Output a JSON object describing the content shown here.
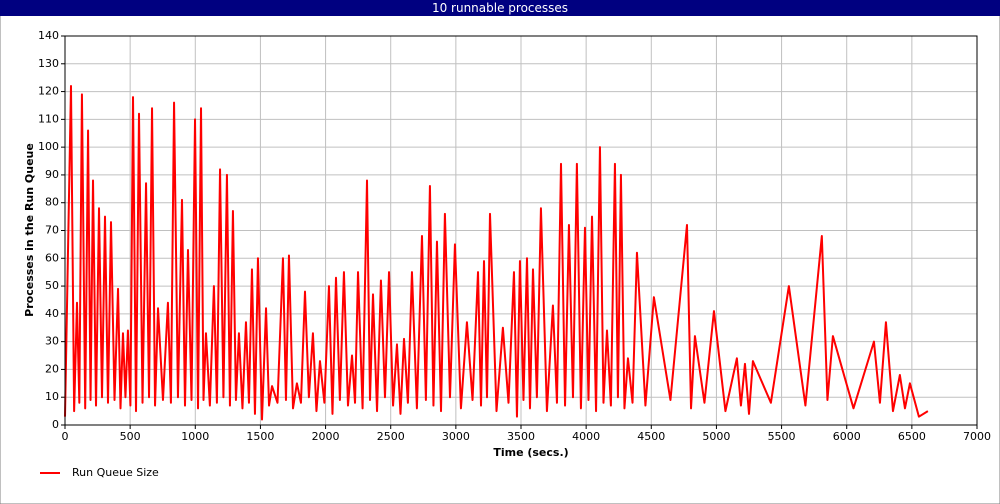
{
  "chart_data": {
    "type": "line",
    "title": "10 runnable processes",
    "x_label": "Time (secs.)",
    "y_label": "Processes in the Run Queue",
    "xlim": [
      0,
      7000
    ],
    "xticks": [
      0,
      500,
      1000,
      1500,
      2000,
      2500,
      3000,
      3500,
      4000,
      4500,
      5000,
      5500,
      6000,
      6500,
      7000
    ],
    "ylim": [
      0,
      140
    ],
    "yticks": [
      0,
      10,
      20,
      30,
      40,
      50,
      60,
      70,
      80,
      90,
      100,
      110,
      120,
      130,
      140
    ],
    "grid": true,
    "legend": "bottom-left",
    "x": [
      0,
      46,
      70,
      92,
      110,
      130,
      155,
      177,
      196,
      215,
      238,
      261,
      284,
      307,
      330,
      353,
      380,
      407,
      426,
      445,
      464,
      483,
      502,
      522,
      545,
      568,
      595,
      622,
      645,
      668,
      691,
      714,
      752,
      790,
      813,
      837,
      867,
      898,
      921,
      944,
      971,
      998,
      1021,
      1044,
      1063,
      1082,
      1112,
      1143,
      1166,
      1190,
      1216,
      1243,
      1266,
      1289,
      1312,
      1335,
      1362,
      1389,
      1412,
      1435,
      1458,
      1481,
      1512,
      1543,
      1566,
      1589,
      1631,
      1673,
      1696,
      1719,
      1750,
      1780,
      1811,
      1842,
      1872,
      1903,
      1930,
      1957,
      1991,
      2026,
      2053,
      2080,
      2110,
      2141,
      2172,
      2203,
      2226,
      2249,
      2284,
      2318,
      2341,
      2364,
      2395,
      2425,
      2456,
      2487,
      2518,
      2548,
      2575,
      2602,
      2632,
      2663,
      2701,
      2740,
      2770,
      2801,
      2828,
      2855,
      2886,
      2916,
      2955,
      2993,
      3039,
      3085,
      3128,
      3170,
      3193,
      3216,
      3239,
      3262,
      3312,
      3361,
      3404,
      3446,
      3469,
      3492,
      3519,
      3546,
      3569,
      3592,
      3622,
      3653,
      3699,
      3745,
      3776,
      3807,
      3838,
      3868,
      3899,
      3929,
      3960,
      3991,
      4018,
      4045,
      4076,
      4106,
      4133,
      4160,
      4190,
      4221,
      4244,
      4267,
      4294,
      4321,
      4356,
      4390,
      4455,
      4520,
      4647,
      4774,
      4805,
      4835,
      4908,
      4981,
      5069,
      5157,
      5188,
      5219,
      5250,
      5280,
      5418,
      5556,
      5683,
      5809,
      5852,
      5894,
      6052,
      6209,
      6255,
      6301,
      6355,
      6408,
      6447,
      6485,
      6554,
      6623
    ],
    "series": [
      {
        "name": "Run Queue Size",
        "color": "#ff0000",
        "values": [
          3,
          122,
          5,
          44,
          8,
          119,
          6,
          106,
          9,
          88,
          7,
          78,
          10,
          75,
          8,
          73,
          9,
          49,
          6,
          33,
          10,
          34,
          7,
          118,
          5,
          112,
          8,
          87,
          10,
          114,
          7,
          42,
          9,
          44,
          8,
          116,
          10,
          81,
          7,
          63,
          9,
          110,
          6,
          114,
          9,
          33,
          7,
          50,
          8,
          92,
          10,
          90,
          7,
          77,
          9,
          33,
          6,
          37,
          8,
          56,
          4,
          60,
          2,
          42,
          7,
          14,
          8,
          60,
          9,
          61,
          6,
          15,
          8,
          48,
          10,
          33,
          5,
          23,
          8,
          50,
          4,
          53,
          9,
          55,
          7,
          25,
          8,
          55,
          6,
          88,
          9,
          47,
          5,
          52,
          10,
          55,
          7,
          29,
          4,
          31,
          8,
          55,
          6,
          68,
          9,
          86,
          7,
          66,
          5,
          76,
          10,
          65,
          6,
          37,
          9,
          55,
          7,
          59,
          10,
          76,
          5,
          35,
          8,
          55,
          3,
          59,
          9,
          60,
          6,
          56,
          10,
          78,
          5,
          43,
          8,
          94,
          7,
          72,
          10,
          94,
          6,
          71,
          9,
          75,
          5,
          100,
          8,
          34,
          7,
          94,
          10,
          90,
          6,
          24,
          8,
          62,
          7,
          46,
          9,
          72,
          6,
          32,
          8,
          41,
          5,
          24,
          7,
          22,
          4,
          23,
          8,
          50,
          7,
          68,
          9,
          32,
          6,
          30,
          8,
          37,
          5,
          18,
          6,
          15,
          3,
          5
        ]
      }
    ]
  }
}
